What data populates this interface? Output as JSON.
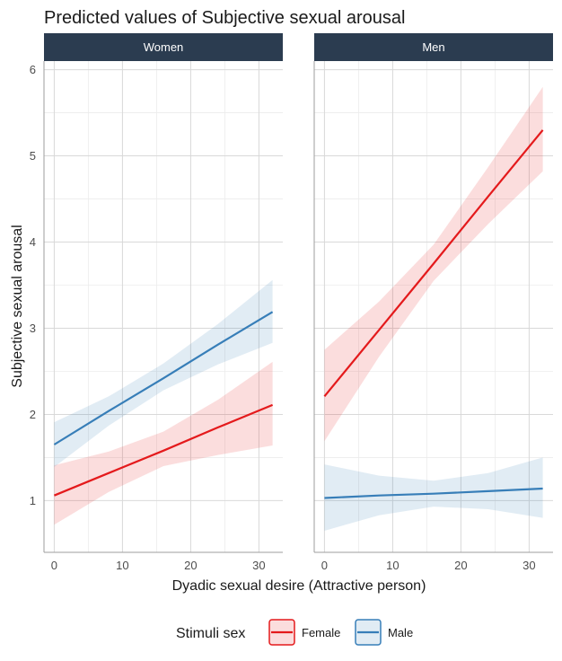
{
  "chart_data": {
    "type": "line",
    "title": "Predicted values of Subjective sexual arousal",
    "xlabel": "Dyadic sexual desire (Attractive person)",
    "ylabel": "Subjective sexual arousal",
    "xlim": [
      -1.5,
      33.5
    ],
    "ylim": [
      0.4,
      6.1
    ],
    "xticks": [
      0,
      10,
      20,
      30
    ],
    "yticks": [
      1,
      2,
      3,
      4,
      5,
      6
    ],
    "grid": true,
    "legend": {
      "title": "Stimuli sex",
      "position": "bottom",
      "entries": [
        {
          "name": "Female",
          "color": "#e41a1c"
        },
        {
          "name": "Male",
          "color": "#377eb8"
        }
      ]
    },
    "panels": [
      {
        "facet": "Women",
        "series": [
          {
            "name": "Female",
            "color": "#e41a1c",
            "x": [
              0,
              8,
              16,
              24,
              32
            ],
            "y": [
              1.06,
              1.32,
              1.58,
              1.85,
              2.11
            ],
            "lower": [
              0.72,
              1.1,
              1.4,
              1.53,
              1.64
            ],
            "upper": [
              1.41,
              1.57,
              1.8,
              2.17,
              2.61
            ]
          },
          {
            "name": "Male",
            "color": "#377eb8",
            "x": [
              0,
              8,
              16,
              24,
              32
            ],
            "y": [
              1.65,
              2.04,
              2.42,
              2.81,
              3.19
            ],
            "lower": [
              1.39,
              1.87,
              2.28,
              2.58,
              2.83
            ],
            "upper": [
              1.91,
              2.21,
              2.59,
              3.05,
              3.56
            ]
          }
        ]
      },
      {
        "facet": "Men",
        "series": [
          {
            "name": "Female",
            "color": "#e41a1c",
            "x": [
              0,
              8,
              16,
              24,
              32
            ],
            "y": [
              2.21,
              2.98,
              3.75,
              4.53,
              5.3
            ],
            "lower": [
              1.69,
              2.67,
              3.55,
              4.21,
              4.82
            ],
            "upper": [
              2.75,
              3.31,
              3.97,
              4.87,
              5.8
            ]
          },
          {
            "name": "Male",
            "color": "#377eb8",
            "x": [
              0,
              8,
              16,
              24,
              32
            ],
            "y": [
              1.03,
              1.06,
              1.08,
              1.11,
              1.14
            ],
            "lower": [
              0.65,
              0.83,
              0.93,
              0.9,
              0.8
            ],
            "upper": [
              1.42,
              1.29,
              1.23,
              1.32,
              1.5
            ]
          }
        ]
      }
    ]
  },
  "colors": {
    "strip_background": "#2b3c50",
    "grid": "#d9d9d9",
    "panel_border": "#9e9e9e",
    "ribbon_opacity": 0.15
  }
}
